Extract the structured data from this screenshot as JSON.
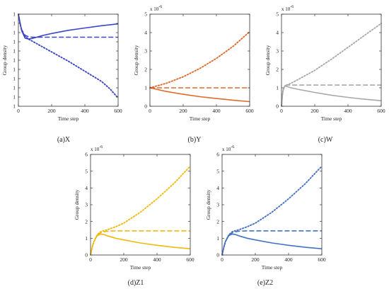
{
  "chart_data": [
    {
      "type": "line",
      "caption": "(a)X",
      "xlabel": "Time step",
      "ylabel": "Group density",
      "exponent": "",
      "xlim": [
        0,
        600
      ],
      "xticks": [
        "0",
        "200",
        "400",
        "600"
      ],
      "ylim": [
        0,
        10
      ],
      "yticks": [
        "1",
        "1",
        "1",
        "1",
        "1",
        "1",
        "1",
        "1",
        "1",
        "1",
        "1"
      ],
      "color": "#3d47c4",
      "series": [
        {
          "style": "solid",
          "x": [
            0,
            10,
            20,
            40,
            60,
            80,
            100,
            150,
            200,
            300,
            400,
            500,
            600
          ],
          "y": [
            10.0,
            9.0,
            8.2,
            7.4,
            7.3,
            7.35,
            7.45,
            7.7,
            7.9,
            8.25,
            8.5,
            8.75,
            8.95
          ]
        },
        {
          "style": "dashed",
          "x": [
            0,
            10,
            20,
            40,
            60,
            80,
            100,
            200,
            300,
            400,
            500,
            600
          ],
          "y": [
            10.0,
            9.0,
            8.3,
            7.7,
            7.55,
            7.5,
            7.5,
            7.5,
            7.5,
            7.5,
            7.5,
            7.5
          ]
        },
        {
          "style": "dotted",
          "x": [
            0,
            10,
            20,
            40,
            60,
            100,
            150,
            200,
            300,
            400,
            500,
            550,
            600
          ],
          "y": [
            10.0,
            9.0,
            8.2,
            7.6,
            7.3,
            6.9,
            6.4,
            5.9,
            4.9,
            3.8,
            2.7,
            1.9,
            0.9
          ]
        }
      ]
    },
    {
      "type": "line",
      "caption": "(b)Y",
      "xlabel": "Time step",
      "ylabel": "Group density",
      "exponent": "-6",
      "xlim": [
        0,
        600
      ],
      "xticks": [
        "0",
        "200",
        "400",
        "600"
      ],
      "ylim": [
        0,
        5
      ],
      "yticks": [
        "0",
        "1",
        "2",
        "3",
        "4",
        "5"
      ],
      "color": "#e06b2e",
      "series": [
        {
          "style": "solid",
          "x": [
            0,
            100,
            200,
            300,
            400,
            500,
            600
          ],
          "y": [
            1.0,
            0.8,
            0.65,
            0.52,
            0.42,
            0.33,
            0.25
          ]
        },
        {
          "style": "dashed",
          "x": [
            0,
            600
          ],
          "y": [
            1.0,
            1.0
          ]
        },
        {
          "style": "dotted",
          "x": [
            0,
            100,
            200,
            300,
            400,
            500,
            600
          ],
          "y": [
            1.0,
            1.25,
            1.6,
            2.05,
            2.6,
            3.25,
            4.05
          ]
        }
      ]
    },
    {
      "type": "line",
      "caption": "(c)W",
      "xlabel": "Time step",
      "ylabel": "Group density",
      "exponent": "-6",
      "xlim": [
        0,
        600
      ],
      "xticks": [
        "0",
        "200",
        "400",
        "600"
      ],
      "ylim": [
        0,
        5
      ],
      "yticks": [
        "0",
        "1",
        "2",
        "3",
        "4",
        "5"
      ],
      "color": "#a8a8a8",
      "series": [
        {
          "style": "solid",
          "x": [
            0,
            5,
            10,
            20,
            30,
            50,
            100,
            200,
            300,
            400,
            500,
            600
          ],
          "y": [
            0,
            0.6,
            0.9,
            1.1,
            1.08,
            1.02,
            0.92,
            0.75,
            0.6,
            0.48,
            0.38,
            0.3
          ]
        },
        {
          "style": "dashed",
          "x": [
            0,
            5,
            10,
            20,
            30,
            50,
            100,
            600
          ],
          "y": [
            0,
            0.6,
            0.9,
            1.1,
            1.15,
            1.15,
            1.15,
            1.15
          ]
        },
        {
          "style": "dotted",
          "x": [
            0,
            5,
            10,
            20,
            30,
            50,
            100,
            200,
            300,
            400,
            500,
            600
          ],
          "y": [
            0,
            0.6,
            0.9,
            1.1,
            1.15,
            1.22,
            1.45,
            1.95,
            2.55,
            3.2,
            3.85,
            4.5
          ]
        }
      ]
    },
    {
      "type": "line",
      "caption": "(d)Z1",
      "xlabel": "Time step",
      "ylabel": "Group density",
      "exponent": "-6",
      "xlim": [
        0,
        600
      ],
      "xticks": [
        "0",
        "200",
        "400",
        "600"
      ],
      "ylim": [
        0,
        6
      ],
      "yticks": [
        "0",
        "1",
        "2",
        "3",
        "4",
        "5",
        "6"
      ],
      "color": "#f2b90f",
      "series": [
        {
          "style": "solid",
          "x": [
            0,
            10,
            20,
            40,
            60,
            80,
            100,
            150,
            200,
            300,
            400,
            500,
            600
          ],
          "y": [
            0,
            0.45,
            0.8,
            1.15,
            1.25,
            1.22,
            1.15,
            1.0,
            0.9,
            0.72,
            0.58,
            0.46,
            0.37
          ]
        },
        {
          "style": "dashed",
          "x": [
            0,
            10,
            20,
            40,
            60,
            80,
            100,
            150,
            200,
            600
          ],
          "y": [
            0,
            0.45,
            0.8,
            1.18,
            1.32,
            1.38,
            1.42,
            1.44,
            1.44,
            1.44
          ]
        },
        {
          "style": "dotted",
          "x": [
            0,
            10,
            20,
            40,
            60,
            80,
            100,
            150,
            200,
            300,
            400,
            500,
            600
          ],
          "y": [
            0,
            0.45,
            0.8,
            1.2,
            1.38,
            1.45,
            1.5,
            1.68,
            1.9,
            2.55,
            3.35,
            4.25,
            5.3
          ]
        }
      ]
    },
    {
      "type": "line",
      "caption": "(e)Z2",
      "xlabel": "Time step",
      "ylabel": "Group density",
      "exponent": "-6",
      "xlim": [
        0,
        600
      ],
      "xticks": [
        "0",
        "200",
        "400",
        "600"
      ],
      "ylim": [
        0,
        6
      ],
      "yticks": [
        "0",
        "1",
        "2",
        "3",
        "4",
        "5",
        "6"
      ],
      "color": "#4472c4",
      "series": [
        {
          "style": "solid",
          "x": [
            0,
            10,
            20,
            40,
            60,
            80,
            100,
            150,
            200,
            300,
            400,
            500,
            600
          ],
          "y": [
            0,
            0.45,
            0.8,
            1.15,
            1.25,
            1.22,
            1.15,
            1.0,
            0.9,
            0.72,
            0.58,
            0.46,
            0.37
          ]
        },
        {
          "style": "dashed",
          "x": [
            0,
            10,
            20,
            40,
            60,
            80,
            100,
            150,
            200,
            600
          ],
          "y": [
            0,
            0.45,
            0.8,
            1.18,
            1.32,
            1.38,
            1.42,
            1.44,
            1.44,
            1.44
          ]
        },
        {
          "style": "dotted",
          "x": [
            0,
            10,
            20,
            40,
            60,
            80,
            100,
            150,
            200,
            300,
            400,
            500,
            600
          ],
          "y": [
            0,
            0.45,
            0.8,
            1.2,
            1.38,
            1.45,
            1.5,
            1.68,
            1.9,
            2.55,
            3.35,
            4.25,
            5.3
          ]
        }
      ]
    }
  ]
}
